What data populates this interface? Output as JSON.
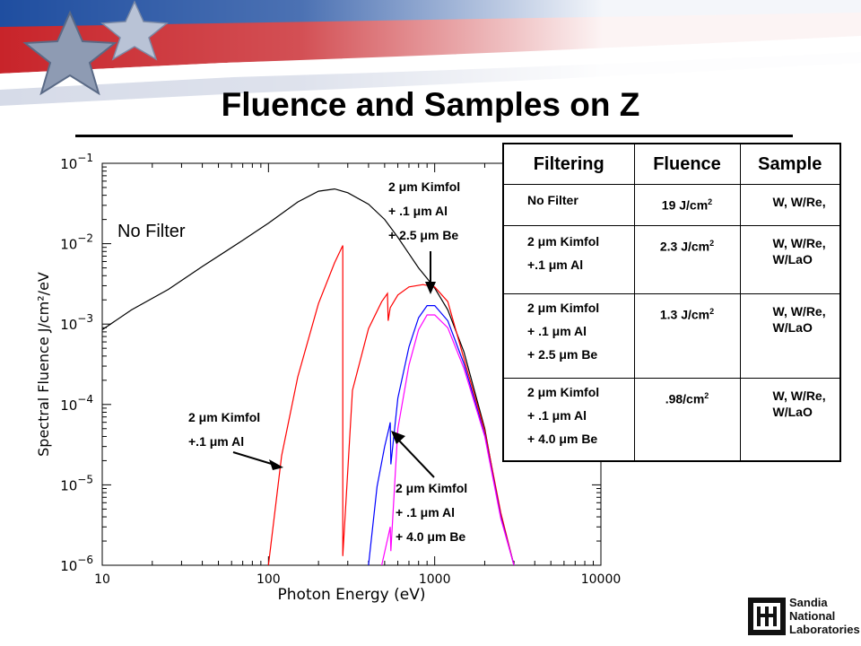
{
  "title": "Fluence  and Samples on Z",
  "chart_data": {
    "type": "line",
    "xscale": "log",
    "yscale": "log",
    "xlim": [
      10,
      10000
    ],
    "ylim": [
      1e-06,
      0.1
    ],
    "xlabel": "Photon Energy (eV)",
    "ylabel": "Spectral Fluence J/cm²/eV",
    "x_ticks": [
      "10",
      "100",
      "1000",
      "10000"
    ],
    "y_ticks": [
      {
        "base": "10",
        "exp": "−1",
        "value": 0.1
      },
      {
        "base": "10",
        "exp": "−2",
        "value": 0.01
      },
      {
        "base": "10",
        "exp": "−3",
        "value": 0.001
      },
      {
        "base": "10",
        "exp": "−4",
        "value": 0.0001
      },
      {
        "base": "10",
        "exp": "−5",
        "value": 1e-05
      },
      {
        "base": "10",
        "exp": "−6",
        "value": 1e-06
      }
    ],
    "series": [
      {
        "color": "#000000",
        "points": [
          [
            10,
            0.00085
          ],
          [
            15,
            0.0015
          ],
          [
            25,
            0.0027
          ],
          [
            40,
            0.0052
          ],
          [
            70,
            0.011
          ],
          [
            100,
            0.018
          ],
          [
            150,
            0.033
          ],
          [
            200,
            0.045
          ],
          [
            250,
            0.048
          ],
          [
            300,
            0.043
          ],
          [
            400,
            0.031
          ],
          [
            500,
            0.02
          ],
          [
            600,
            0.012
          ],
          [
            700,
            0.0075
          ],
          [
            800,
            0.005
          ],
          [
            900,
            0.0037
          ],
          [
            1000,
            0.0028
          ],
          [
            1200,
            0.0015
          ],
          [
            1500,
            0.00045
          ],
          [
            2000,
            5e-05
          ],
          [
            2500,
            4e-06
          ],
          [
            3000,
            1e-06
          ]
        ]
      },
      {
        "color": "#ff0000",
        "points": [
          [
            100,
            1e-06
          ],
          [
            120,
            2.3e-05
          ],
          [
            150,
            0.00022
          ],
          [
            200,
            0.0018
          ],
          [
            250,
            0.0058
          ],
          [
            280,
            0.0095
          ],
          [
            280,
            1.3e-06
          ],
          [
            320,
            0.00015
          ],
          [
            400,
            0.00088
          ],
          [
            480,
            0.0019
          ],
          [
            520,
            0.0024
          ],
          [
            525,
            0.0011
          ],
          [
            540,
            0.0016
          ],
          [
            600,
            0.0023
          ],
          [
            700,
            0.0029
          ],
          [
            850,
            0.0031
          ],
          [
            1000,
            0.0029
          ],
          [
            1200,
            0.0019
          ],
          [
            1500,
            0.00037
          ],
          [
            2000,
            4.7e-05
          ],
          [
            2500,
            4.5e-06
          ],
          [
            3000,
            1e-06
          ]
        ]
      },
      {
        "color": "#0000ff",
        "points": [
          [
            400,
            1e-06
          ],
          [
            450,
            9.5e-06
          ],
          [
            500,
            3e-05
          ],
          [
            530,
            5e-05
          ],
          [
            540,
            6e-05
          ],
          [
            545,
            1.8e-05
          ],
          [
            600,
            0.00012
          ],
          [
            700,
            0.00052
          ],
          [
            800,
            0.0012
          ],
          [
            900,
            0.0017
          ],
          [
            1000,
            0.0017
          ],
          [
            1200,
            0.0011
          ],
          [
            1500,
            0.00032
          ],
          [
            2000,
            4.2e-05
          ],
          [
            2500,
            4e-06
          ],
          [
            3000,
            1e-06
          ]
        ]
      },
      {
        "color": "#ff00ff",
        "points": [
          [
            480,
            1e-06
          ],
          [
            530,
            2.5e-06
          ],
          [
            540,
            3e-06
          ],
          [
            545,
            1.5e-06
          ],
          [
            600,
            5e-05
          ],
          [
            700,
            0.00031
          ],
          [
            800,
            0.00085
          ],
          [
            900,
            0.0013
          ],
          [
            1000,
            0.0013
          ],
          [
            1200,
            0.0009
          ],
          [
            1500,
            0.00028
          ],
          [
            2000,
            4e-05
          ],
          [
            2500,
            3.8e-06
          ],
          [
            3000,
            1e-06
          ]
        ]
      }
    ]
  },
  "annotations": {
    "no_filter": "No Filter",
    "be25": [
      "2 μm Kimfol",
      "+ .1 μm Al",
      "+ 2.5 μm Be"
    ],
    "al": [
      "2 μm Kimfol",
      "+.1 μm Al"
    ],
    "be40": [
      "2 μm Kimfol",
      "+ .1 μm Al",
      "+ 4.0 μm Be"
    ]
  },
  "table": {
    "headers": [
      "Filtering",
      "Fluence",
      "Sample"
    ],
    "rows": [
      {
        "filtering": [
          "No Filter"
        ],
        "fluence": "19 J/cm",
        "sample": [
          "W, W/Re,"
        ]
      },
      {
        "filtering": [
          "2 μm Kimfol",
          "+.1 μm Al"
        ],
        "fluence": "2.3 J/cm",
        "sample": [
          "W, W/Re,",
          "W/LaO"
        ]
      },
      {
        "filtering": [
          "2 μm Kimfol",
          "+ .1 μm Al",
          "+ 2.5 μm Be"
        ],
        "fluence": "1.3 J/cm",
        "sample": [
          "W, W/Re,",
          "W/LaO"
        ]
      },
      {
        "filtering": [
          "2 μm Kimfol",
          "+ .1 μm Al",
          "+ 4.0 μm Be"
        ],
        "fluence": ".98/cm",
        "sample": [
          "W, W/Re,",
          "W/LaO"
        ]
      }
    ],
    "fluence_exp": "2"
  },
  "logo": {
    "lines": [
      "Sandia",
      "National",
      "Laboratories"
    ]
  },
  "colors": {
    "banner_blue": "#2a55a8",
    "banner_red": "#c8242a",
    "title_rule": "#000000"
  }
}
